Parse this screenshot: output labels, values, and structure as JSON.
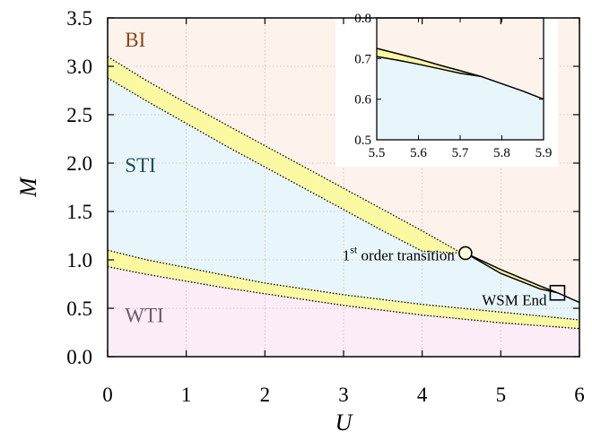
{
  "chart_data": [
    {
      "type": "area",
      "xlabel": "U",
      "ylabel": "M",
      "xlim": [
        0,
        6
      ],
      "ylim": [
        0,
        3.5
      ],
      "xticks": [
        "0",
        "1",
        "2",
        "3",
        "4",
        "5",
        "6"
      ],
      "yticks": [
        "0.0",
        "0.5",
        "1.0",
        "1.5",
        "2.0",
        "2.5",
        "3.0",
        "3.5"
      ],
      "grid": true,
      "regions": [
        {
          "label": "BI",
          "color": "#fdf3ec",
          "label_color": "#8b4513"
        },
        {
          "label": "STI",
          "color": "#e8f6fb",
          "label_color": "#1f4e5c"
        },
        {
          "label": "WTI",
          "color": "#fcecf8",
          "label_color": "#6d5a6d"
        }
      ],
      "band_color": "#fbf9a2",
      "upper_band": {
        "x": [
          0,
          0.5,
          1,
          1.5,
          2,
          2.5,
          3,
          3.5,
          4,
          4.5,
          4.55
        ],
        "upper": [
          3.1,
          2.85,
          2.62,
          2.4,
          2.18,
          1.96,
          1.74,
          1.52,
          1.3,
          1.07,
          1.07
        ],
        "lower": [
          2.88,
          2.64,
          2.41,
          2.18,
          1.96,
          1.74,
          1.52,
          1.3,
          1.09,
          1.07,
          1.07
        ]
      },
      "first_order_line": {
        "x": [
          4.55,
          5.0,
          5.5,
          5.72
        ],
        "upper": [
          1.07,
          0.9,
          0.73,
          0.66
        ],
        "lower": [
          1.07,
          0.86,
          0.7,
          0.66
        ]
      },
      "tail_line": {
        "x": [
          5.72,
          6.0
        ],
        "y": [
          0.66,
          0.56
        ]
      },
      "lower_band": {
        "x": [
          0,
          0.5,
          1,
          1.5,
          2,
          2.5,
          3,
          3.5,
          4,
          4.5,
          5,
          5.5,
          6
        ],
        "upper": [
          1.1,
          1.0,
          0.92,
          0.84,
          0.76,
          0.7,
          0.64,
          0.59,
          0.54,
          0.5,
          0.46,
          0.42,
          0.38
        ],
        "lower": [
          0.93,
          0.85,
          0.78,
          0.71,
          0.65,
          0.59,
          0.53,
          0.48,
          0.43,
          0.39,
          0.35,
          0.32,
          0.29
        ]
      },
      "markers": [
        {
          "shape": "circle",
          "x": 4.55,
          "y": 1.07,
          "label": "order transition",
          "label_sup": "st",
          "label_prefix": "1"
        },
        {
          "shape": "square",
          "x": 5.72,
          "y": 0.66,
          "label": "WSM End"
        }
      ]
    },
    {
      "type": "area",
      "xlim": [
        5.5,
        5.9
      ],
      "ylim": [
        0.5,
        0.8
      ],
      "xticks": [
        "5.5",
        "5.6",
        "5.7",
        "5.8",
        "5.9"
      ],
      "yticks": [
        "0.5",
        "0.6",
        "0.7",
        "0.8"
      ],
      "band": {
        "x": [
          5.5,
          5.55,
          5.6,
          5.65,
          5.7,
          5.75
        ],
        "upper": [
          0.725,
          0.712,
          0.699,
          0.684,
          0.67,
          0.656
        ],
        "lower": [
          0.705,
          0.696,
          0.686,
          0.675,
          0.664,
          0.656
        ]
      },
      "line": {
        "x": [
          5.75,
          5.8,
          5.85,
          5.9
        ],
        "y": [
          0.656,
          0.638,
          0.62,
          0.6
        ]
      }
    }
  ]
}
